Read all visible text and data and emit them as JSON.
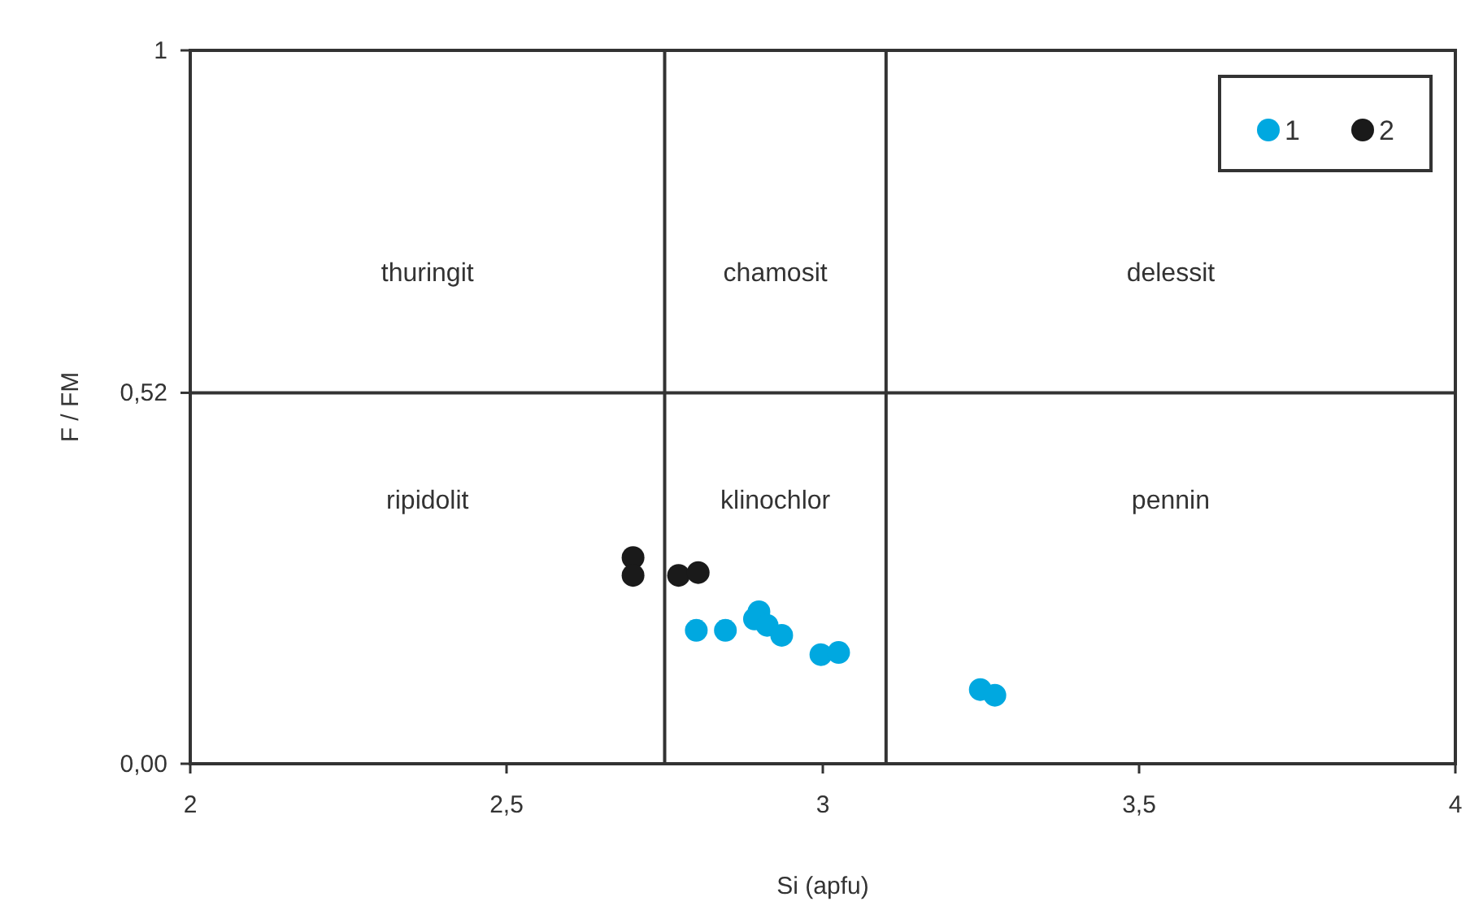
{
  "chart_data": {
    "type": "scatter",
    "xlabel": "Si (apfu)",
    "ylabel": "F / FM",
    "xlim": [
      2,
      4
    ],
    "xticks": [
      2,
      {
        "value": 2.5,
        "label": "2,5"
      },
      3,
      {
        "value": 3.5,
        "label": "3,5"
      },
      4
    ],
    "ylim": [
      0,
      1
    ],
    "yticks": [
      {
        "value": 0,
        "label": "0,00"
      },
      {
        "value": 0.52,
        "label": "0,52"
      },
      1
    ],
    "legend": "top right",
    "marker": "circle",
    "series": [
      {
        "name": "1",
        "color": "#00a8e0",
        "x": [
          2.8,
          2.846,
          2.899,
          2.892,
          2.912,
          2.935,
          2.997,
          3.025,
          3.249,
          3.272
        ],
        "values": [
          0.187,
          0.187,
          0.213,
          0.203,
          0.194,
          0.18,
          0.153,
          0.156,
          0.104,
          0.096
        ]
      },
      {
        "name": "2",
        "color": "#1a1a1a",
        "x": [
          2.7,
          2.7,
          2.772,
          2.803
        ],
        "values": [
          0.289,
          0.264,
          0.264,
          0.268
        ]
      }
    ],
    "ref_lines": [
      {
        "axis": "x",
        "value": 2.75,
        "color": "#333333"
      },
      {
        "axis": "x",
        "value": 3.1,
        "color": "#333333"
      },
      {
        "axis": "y",
        "value": 0.52,
        "color": "#333333"
      }
    ],
    "annotations": [
      "thuringit",
      "chamosit",
      "delessit",
      "ripidolit",
      "klinochlor",
      "pennin"
    ]
  }
}
